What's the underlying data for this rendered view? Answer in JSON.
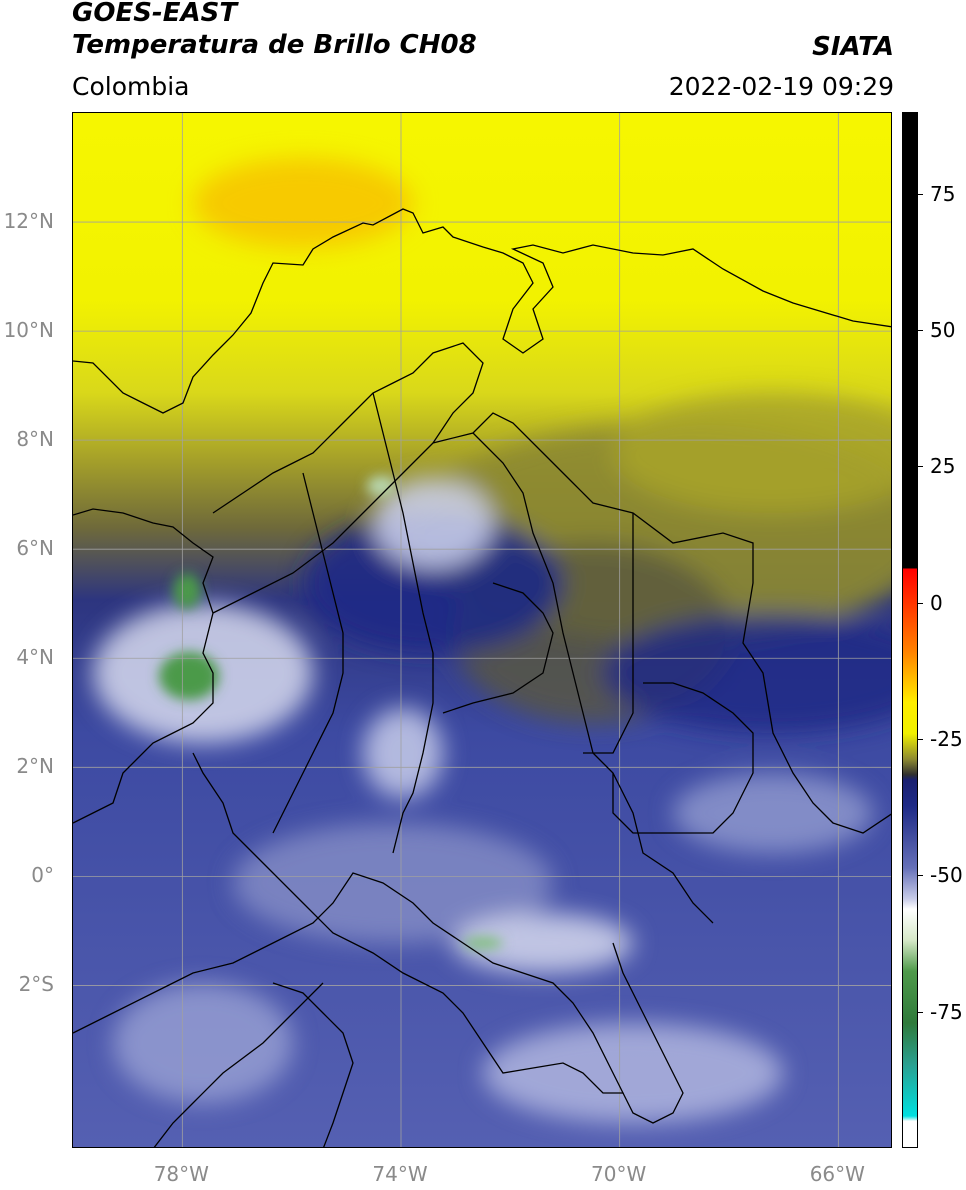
{
  "header": {
    "title_line1": "GOES-EAST",
    "title_line2": "Temperatura de Brillo CH08",
    "region": "Colombia",
    "source": "SIATA",
    "datetime": "2022-02-19 09:29"
  },
  "map": {
    "projection": "lat-lon",
    "lon_range": [
      -80,
      -65
    ],
    "lat_range": [
      -5,
      14
    ],
    "grid": true,
    "lat_ticks": [
      {
        "value": 12,
        "label": "12°N"
      },
      {
        "value": 10,
        "label": "10°N"
      },
      {
        "value": 8,
        "label": "8°N"
      },
      {
        "value": 6,
        "label": "6°N"
      },
      {
        "value": 4,
        "label": "4°N"
      },
      {
        "value": 2,
        "label": "2°N"
      },
      {
        "value": 0,
        "label": "0°"
      },
      {
        "value": -2,
        "label": "2°S"
      }
    ],
    "lon_ticks": [
      {
        "value": -78,
        "label": "78°W"
      },
      {
        "value": -74,
        "label": "74°W"
      },
      {
        "value": -70,
        "label": "70°W"
      },
      {
        "value": -66,
        "label": "66°W"
      }
    ],
    "colors": {
      "cold_blue": "#2a3a9a",
      "pale": "#d8dcf0",
      "olive": "#8a8a30",
      "yellow": "#f2f200",
      "orange": "#f5b800",
      "green": "#4f9a4a"
    }
  },
  "colorbar": {
    "range": [
      -100,
      90
    ],
    "ticks": [
      {
        "value": 75,
        "label": "75"
      },
      {
        "value": 50,
        "label": "50"
      },
      {
        "value": 25,
        "label": "25"
      },
      {
        "value": 0,
        "label": "0"
      },
      {
        "value": -25,
        "label": "-25"
      },
      {
        "value": -50,
        "label": "-50"
      },
      {
        "value": -75,
        "label": "-75"
      }
    ]
  }
}
